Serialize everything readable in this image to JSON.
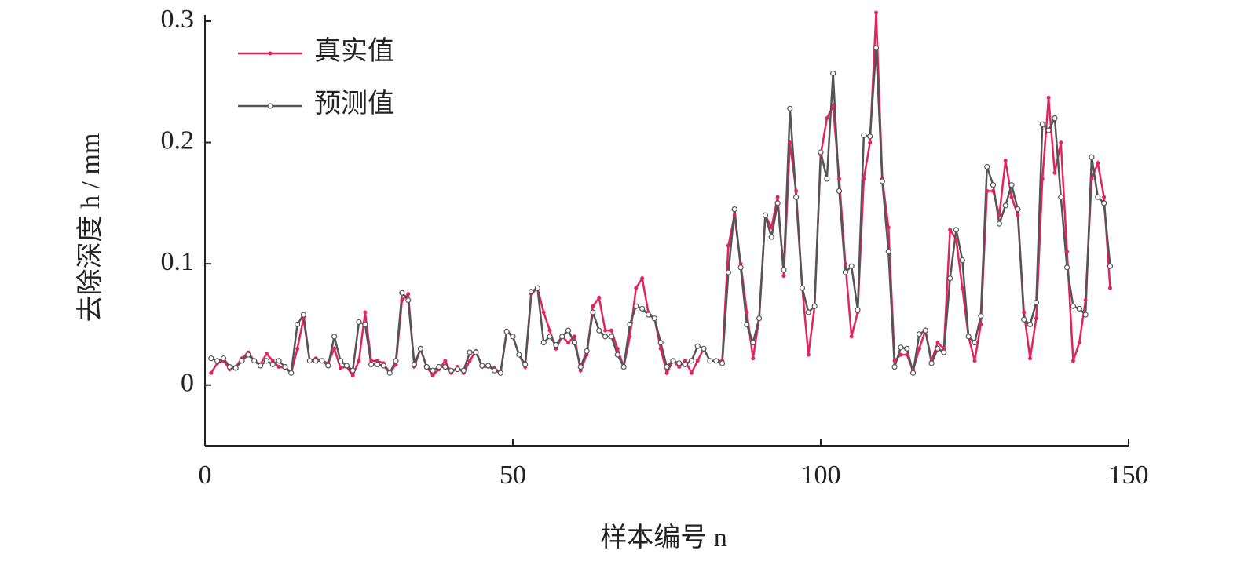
{
  "chart_data": {
    "type": "line",
    "xlabel": "样本编号 n",
    "ylabel": "去除深度 h / mm",
    "x": [
      1,
      2,
      3,
      4,
      5,
      6,
      7,
      8,
      9,
      10,
      11,
      12,
      13,
      14,
      15,
      16,
      17,
      18,
      19,
      20,
      21,
      22,
      23,
      24,
      25,
      26,
      27,
      28,
      29,
      30,
      31,
      32,
      33,
      34,
      35,
      36,
      37,
      38,
      39,
      40,
      41,
      42,
      43,
      44,
      45,
      46,
      47,
      48,
      49,
      50,
      51,
      52,
      53,
      54,
      55,
      56,
      57,
      58,
      59,
      60,
      61,
      62,
      63,
      64,
      65,
      66,
      67,
      68,
      69,
      70,
      71,
      72,
      73,
      74,
      75,
      76,
      77,
      78,
      79,
      80,
      81,
      82,
      83,
      84,
      85,
      86,
      87,
      88,
      89,
      90,
      91,
      92,
      93,
      94,
      95,
      96,
      97,
      98,
      99,
      100,
      101,
      102,
      103,
      104,
      105,
      106,
      107,
      108,
      109,
      110,
      111,
      112,
      113,
      114,
      115,
      116,
      117,
      118,
      119,
      120,
      121,
      122,
      123,
      124,
      125,
      126,
      127,
      128,
      129,
      130,
      131,
      132,
      133,
      134,
      135,
      136,
      137,
      138,
      139,
      140,
      141,
      142,
      143,
      144,
      145,
      146,
      147
    ],
    "series": [
      {
        "name": "真实值",
        "color": "#e0245e",
        "marker": "dot",
        "values": [
          0.01,
          0.018,
          0.02,
          0.013,
          0.015,
          0.022,
          0.027,
          0.02,
          0.017,
          0.026,
          0.02,
          0.015,
          0.014,
          0.01,
          0.03,
          0.055,
          0.02,
          0.022,
          0.02,
          0.018,
          0.03,
          0.014,
          0.015,
          0.008,
          0.02,
          0.06,
          0.02,
          0.02,
          0.018,
          0.01,
          0.017,
          0.07,
          0.075,
          0.015,
          0.03,
          0.015,
          0.008,
          0.013,
          0.02,
          0.01,
          0.015,
          0.01,
          0.02,
          0.028,
          0.015,
          0.015,
          0.014,
          0.01,
          0.045,
          0.04,
          0.025,
          0.015,
          0.075,
          0.08,
          0.06,
          0.045,
          0.03,
          0.04,
          0.035,
          0.04,
          0.012,
          0.025,
          0.065,
          0.072,
          0.045,
          0.045,
          0.03,
          0.015,
          0.04,
          0.08,
          0.088,
          0.06,
          0.055,
          0.03,
          0.01,
          0.02,
          0.015,
          0.02,
          0.01,
          0.02,
          0.03,
          0.02,
          0.02,
          0.02,
          0.115,
          0.14,
          0.1,
          0.06,
          0.022,
          0.055,
          0.14,
          0.13,
          0.155,
          0.09,
          0.2,
          0.16,
          0.08,
          0.025,
          0.065,
          0.19,
          0.22,
          0.23,
          0.17,
          0.1,
          0.04,
          0.06,
          0.17,
          0.2,
          0.307,
          0.17,
          0.13,
          0.02,
          0.025,
          0.025,
          0.012,
          0.03,
          0.045,
          0.02,
          0.035,
          0.03,
          0.128,
          0.12,
          0.08,
          0.04,
          0.02,
          0.05,
          0.16,
          0.16,
          0.14,
          0.185,
          0.155,
          0.14,
          0.06,
          0.022,
          0.055,
          0.17,
          0.237,
          0.175,
          0.2,
          0.11,
          0.02,
          0.035,
          0.07,
          0.17,
          0.183,
          0.155,
          0.08
        ]
      },
      {
        "name": "预测值",
        "color": "#555555",
        "marker": "circle",
        "values": [
          0.022,
          0.02,
          0.022,
          0.015,
          0.014,
          0.02,
          0.025,
          0.02,
          0.016,
          0.02,
          0.017,
          0.02,
          0.015,
          0.01,
          0.05,
          0.058,
          0.02,
          0.02,
          0.02,
          0.016,
          0.04,
          0.02,
          0.016,
          0.012,
          0.052,
          0.05,
          0.017,
          0.017,
          0.016,
          0.01,
          0.02,
          0.076,
          0.07,
          0.017,
          0.03,
          0.015,
          0.012,
          0.015,
          0.015,
          0.012,
          0.013,
          0.012,
          0.027,
          0.027,
          0.016,
          0.016,
          0.012,
          0.01,
          0.044,
          0.04,
          0.025,
          0.017,
          0.077,
          0.08,
          0.035,
          0.04,
          0.033,
          0.04,
          0.045,
          0.035,
          0.015,
          0.028,
          0.06,
          0.045,
          0.04,
          0.04,
          0.025,
          0.015,
          0.05,
          0.065,
          0.063,
          0.058,
          0.055,
          0.035,
          0.015,
          0.02,
          0.018,
          0.017,
          0.02,
          0.032,
          0.03,
          0.02,
          0.02,
          0.018,
          0.093,
          0.145,
          0.097,
          0.05,
          0.035,
          0.055,
          0.14,
          0.122,
          0.15,
          0.095,
          0.228,
          0.155,
          0.08,
          0.06,
          0.065,
          0.192,
          0.17,
          0.257,
          0.16,
          0.093,
          0.098,
          0.062,
          0.206,
          0.205,
          0.278,
          0.168,
          0.11,
          0.015,
          0.031,
          0.03,
          0.01,
          0.042,
          0.045,
          0.018,
          0.03,
          0.027,
          0.088,
          0.128,
          0.103,
          0.04,
          0.035,
          0.057,
          0.18,
          0.165,
          0.133,
          0.148,
          0.165,
          0.145,
          0.054,
          0.05,
          0.068,
          0.215,
          0.21,
          0.22,
          0.155,
          0.097,
          0.065,
          0.063,
          0.058,
          0.188,
          0.155,
          0.15,
          0.098
        ]
      }
    ],
    "xlim": [
      0,
      150
    ],
    "xticks": [
      0,
      50,
      100,
      150
    ],
    "ylim": [
      -0.05,
      0.3
    ],
    "yticks": [
      0,
      0.1,
      0.2,
      0.3
    ],
    "legend": "upper left"
  }
}
